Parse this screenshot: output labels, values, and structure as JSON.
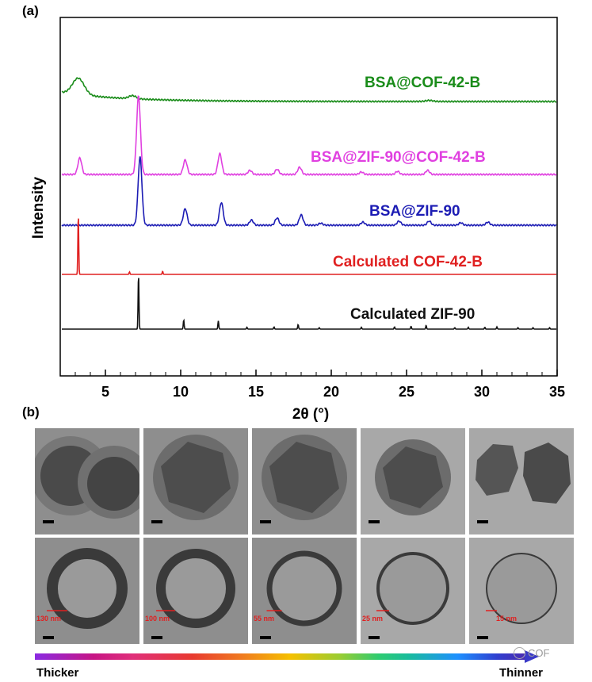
{
  "panel_a_label": "(a)",
  "panel_b_label": "(b)",
  "chart_data": {
    "type": "line",
    "title": "",
    "xlabel": "2θ (°)",
    "ylabel": "Intensity",
    "xlim": [
      2,
      35
    ],
    "x_ticks": [
      "5",
      "10",
      "15",
      "20",
      "25",
      "30",
      "35"
    ],
    "series": [
      {
        "name": "BSA@COF-42-B",
        "color": "#1a8c1a",
        "peaks": [
          {
            "x": 3.2,
            "h": 0.8
          },
          {
            "x": 6.8,
            "h": 0.15
          },
          {
            "x": 26.5,
            "h": 0.05
          }
        ]
      },
      {
        "name": "BSA@ZIF-90@COF-42-B",
        "color": "#e040e0",
        "peaks": [
          {
            "x": 3.3,
            "h": 0.8
          },
          {
            "x": 7.2,
            "h": 3.8
          },
          {
            "x": 10.3,
            "h": 0.7
          },
          {
            "x": 12.6,
            "h": 1.0
          },
          {
            "x": 14.6,
            "h": 0.2
          },
          {
            "x": 16.4,
            "h": 0.25
          },
          {
            "x": 17.9,
            "h": 0.35
          },
          {
            "x": 22.0,
            "h": 0.12
          },
          {
            "x": 24.4,
            "h": 0.15
          },
          {
            "x": 26.4,
            "h": 0.2
          }
        ]
      },
      {
        "name": "BSA@ZIF-90",
        "color": "#1c1cb4",
        "peaks": [
          {
            "x": 7.3,
            "h": 3.3
          },
          {
            "x": 10.3,
            "h": 0.8
          },
          {
            "x": 12.7,
            "h": 1.1
          },
          {
            "x": 14.7,
            "h": 0.25
          },
          {
            "x": 16.4,
            "h": 0.35
          },
          {
            "x": 18.0,
            "h": 0.5
          },
          {
            "x": 19.3,
            "h": 0.1
          },
          {
            "x": 22.1,
            "h": 0.15
          },
          {
            "x": 24.5,
            "h": 0.2
          },
          {
            "x": 26.5,
            "h": 0.2
          },
          {
            "x": 28.6,
            "h": 0.12
          },
          {
            "x": 30.4,
            "h": 0.15
          }
        ]
      },
      {
        "name": "Calculated COF-42-B",
        "color": "#e02020",
        "peaks": [
          {
            "x": 3.2,
            "h": 2.9
          },
          {
            "x": 6.6,
            "h": 0.12
          },
          {
            "x": 8.8,
            "h": 0.15
          }
        ]
      },
      {
        "name": "Calculated ZIF-90",
        "color": "#111111",
        "peaks": [
          {
            "x": 7.2,
            "h": 3.0
          },
          {
            "x": 10.2,
            "h": 0.5
          },
          {
            "x": 12.5,
            "h": 0.45
          },
          {
            "x": 14.4,
            "h": 0.1
          },
          {
            "x": 16.2,
            "h": 0.12
          },
          {
            "x": 17.8,
            "h": 0.25
          },
          {
            "x": 19.2,
            "h": 0.08
          },
          {
            "x": 22.0,
            "h": 0.1
          },
          {
            "x": 24.2,
            "h": 0.12
          },
          {
            "x": 25.3,
            "h": 0.15
          },
          {
            "x": 26.3,
            "h": 0.2
          },
          {
            "x": 28.2,
            "h": 0.08
          },
          {
            "x": 29.1,
            "h": 0.1
          },
          {
            "x": 30.2,
            "h": 0.1
          },
          {
            "x": 31.0,
            "h": 0.12
          },
          {
            "x": 32.4,
            "h": 0.08
          },
          {
            "x": 33.4,
            "h": 0.08
          },
          {
            "x": 34.5,
            "h": 0.08
          }
        ]
      }
    ]
  },
  "tem": {
    "top_row": [
      "",
      "",
      "",
      "",
      ""
    ],
    "bottom_row": [
      "130 nm",
      "100 nm",
      "55 nm",
      "25 nm",
      "15 nm"
    ]
  },
  "gradient": {
    "left_label": "Thicker",
    "right_label": "Thinner"
  },
  "watermark": "COF",
  "colors": {
    "tem_bg": "#8e8e8e",
    "tem_bg_light": "#a8a8a8",
    "particle": "#505050",
    "shell_label": "#e02020"
  }
}
